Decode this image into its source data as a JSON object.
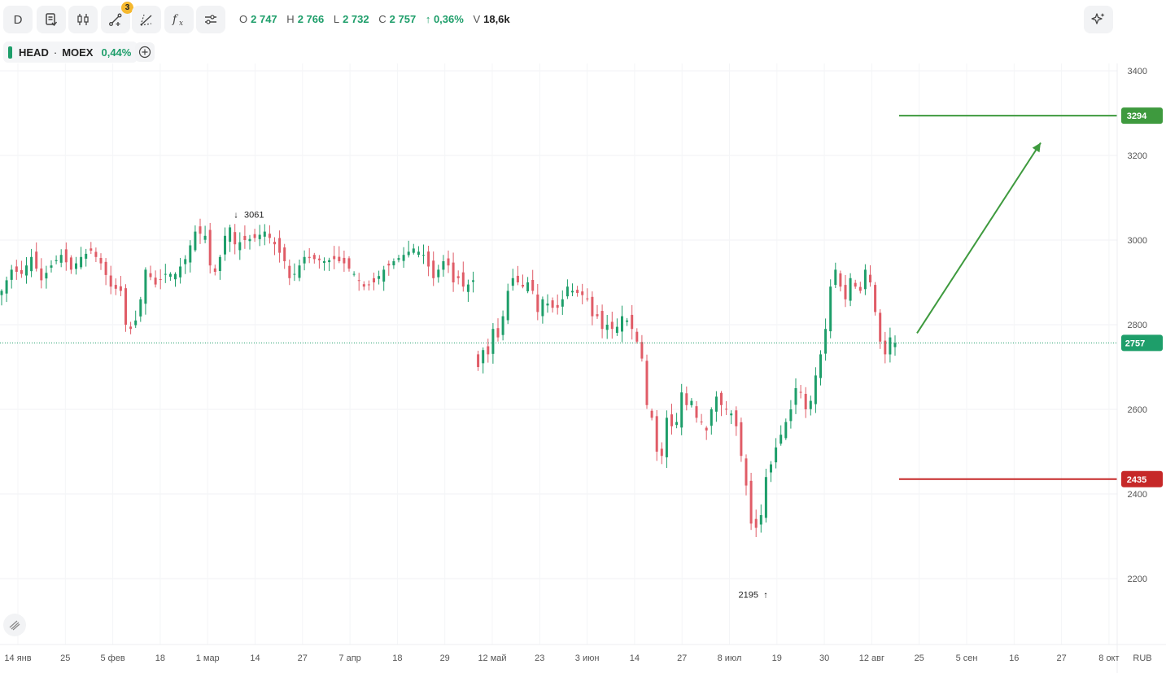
{
  "toolbar": {
    "interval_label": "D",
    "drawing_tools_count": "3",
    "icons": [
      "interval-button",
      "chart-template-icon",
      "candle-type-icon",
      "drawing-tools-icon",
      "pattern-icon",
      "indicators-icon",
      "settings-icon"
    ]
  },
  "ohlc": {
    "o_label": "O",
    "o_value": "2 747",
    "h_label": "H",
    "h_value": "2 766",
    "l_label": "L",
    "l_value": "2 732",
    "c_label": "C",
    "c_value": "2 757",
    "change": "↑ 0,36%",
    "v_label": "V",
    "v_value": "18,6k"
  },
  "legend": {
    "symbol": "HEAD",
    "separator": "·",
    "exchange": "MOEX",
    "change": "0,44%"
  },
  "colors": {
    "up": "#1e9e6a",
    "down": "#e05c67",
    "target_line": "#3e9a3e",
    "stop_line": "#c62828",
    "last_price": "#1e9e6a"
  },
  "chart_data": {
    "type": "candlestick",
    "currency": "RUB",
    "ylim": [
      2000,
      3520
    ],
    "y_ticks": [
      2200,
      2400,
      2600,
      2800,
      3000,
      3200,
      3400
    ],
    "x_ticks": [
      "14 янв",
      "25",
      "5 фев",
      "18",
      "1 мар",
      "14",
      "27",
      "7 апр",
      "18",
      "29",
      "12 май",
      "23",
      "3 июн",
      "14",
      "27",
      "8 июл",
      "19",
      "30",
      "12 авг",
      "25",
      "5 сен",
      "16",
      "27",
      "8 окт"
    ],
    "close_path": [
      {
        "t": 0,
        "c": 2880
      },
      {
        "t": 2,
        "c": 2930
      },
      {
        "t": 4,
        "c": 2920
      },
      {
        "t": 6,
        "c": 2960
      },
      {
        "t": 8,
        "c": 2905
      },
      {
        "t": 10,
        "c": 2940
      },
      {
        "t": 12,
        "c": 2965
      },
      {
        "t": 14,
        "c": 2930
      },
      {
        "t": 16,
        "c": 2960
      },
      {
        "t": 18,
        "c": 2975
      },
      {
        "t": 20,
        "c": 2945
      },
      {
        "t": 22,
        "c": 2890
      },
      {
        "t": 24,
        "c": 2880
      },
      {
        "t": 25,
        "c": 2800
      },
      {
        "t": 26,
        "c": 2790
      },
      {
        "t": 27,
        "c": 2810
      },
      {
        "t": 28,
        "c": 2860
      },
      {
        "t": 29,
        "c": 2930
      },
      {
        "t": 31,
        "c": 2895
      },
      {
        "t": 33,
        "c": 2920
      },
      {
        "t": 35,
        "c": 2920
      },
      {
        "t": 37,
        "c": 2955
      },
      {
        "t": 39,
        "c": 3020
      },
      {
        "t": 41,
        "c": 3010
      },
      {
        "t": 42,
        "c": 2940
      },
      {
        "t": 43,
        "c": 2925
      },
      {
        "t": 44,
        "c": 2960
      },
      {
        "t": 45,
        "c": 3010
      },
      {
        "t": 46,
        "c": 3030
      },
      {
        "t": 47,
        "c": 2990
      },
      {
        "t": 49,
        "c": 3000
      },
      {
        "t": 51,
        "c": 3005
      },
      {
        "t": 53,
        "c": 3020
      },
      {
        "t": 55,
        "c": 2990
      },
      {
        "t": 57,
        "c": 2950
      },
      {
        "t": 58,
        "c": 2910
      },
      {
        "t": 59,
        "c": 2920
      },
      {
        "t": 61,
        "c": 2960
      },
      {
        "t": 63,
        "c": 2955
      },
      {
        "t": 65,
        "c": 2950
      },
      {
        "t": 67,
        "c": 2955
      },
      {
        "t": 69,
        "c": 2945
      },
      {
        "t": 71,
        "c": 2920
      },
      {
        "t": 73,
        "c": 2890
      },
      {
        "t": 75,
        "c": 2900
      },
      {
        "t": 77,
        "c": 2930
      },
      {
        "t": 79,
        "c": 2950
      },
      {
        "t": 81,
        "c": 2965
      },
      {
        "t": 83,
        "c": 2980
      },
      {
        "t": 85,
        "c": 2965
      },
      {
        "t": 87,
        "c": 2910
      },
      {
        "t": 89,
        "c": 2950
      },
      {
        "t": 90,
        "c": 2940
      },
      {
        "t": 91,
        "c": 2900
      },
      {
        "t": 92,
        "c": 2910
      },
      {
        "t": 93,
        "c": 2890
      },
      {
        "t": 94,
        "c": 2895
      },
      {
        "t": 95,
        "c": 2905
      },
      {
        "t": 96,
        "c": 2700
      },
      {
        "t": 97,
        "c": 2740
      },
      {
        "t": 98,
        "c": 2730
      },
      {
        "t": 99,
        "c": 2790
      },
      {
        "t": 100,
        "c": 2770
      },
      {
        "t": 101,
        "c": 2820
      },
      {
        "t": 102,
        "c": 2880
      },
      {
        "t": 103,
        "c": 2910
      },
      {
        "t": 104,
        "c": 2900
      },
      {
        "t": 105,
        "c": 2890
      },
      {
        "t": 106,
        "c": 2900
      },
      {
        "t": 107,
        "c": 2880
      },
      {
        "t": 108,
        "c": 2830
      },
      {
        "t": 109,
        "c": 2860
      },
      {
        "t": 110,
        "c": 2850
      },
      {
        "t": 111,
        "c": 2840
      },
      {
        "t": 112,
        "c": 2840
      },
      {
        "t": 113,
        "c": 2860
      },
      {
        "t": 114,
        "c": 2890
      },
      {
        "t": 115,
        "c": 2880
      },
      {
        "t": 116,
        "c": 2875
      },
      {
        "t": 117,
        "c": 2870
      },
      {
        "t": 118,
        "c": 2860
      },
      {
        "t": 119,
        "c": 2820
      },
      {
        "t": 120,
        "c": 2820
      },
      {
        "t": 121,
        "c": 2790
      },
      {
        "t": 122,
        "c": 2800
      },
      {
        "t": 123,
        "c": 2790
      },
      {
        "t": 124,
        "c": 2795
      },
      {
        "t": 125,
        "c": 2820
      },
      {
        "t": 126,
        "c": 2810
      },
      {
        "t": 127,
        "c": 2790
      },
      {
        "t": 128,
        "c": 2760
      },
      {
        "t": 129,
        "c": 2720
      },
      {
        "t": 130,
        "c": 2610
      },
      {
        "t": 131,
        "c": 2580
      },
      {
        "t": 132,
        "c": 2500
      },
      {
        "t": 133,
        "c": 2490
      },
      {
        "t": 134,
        "c": 2580
      },
      {
        "t": 135,
        "c": 2560
      },
      {
        "t": 136,
        "c": 2570
      },
      {
        "t": 137,
        "c": 2640
      },
      {
        "t": 138,
        "c": 2610
      },
      {
        "t": 139,
        "c": 2620
      },
      {
        "t": 140,
        "c": 2580
      },
      {
        "t": 141,
        "c": 2570
      },
      {
        "t": 142,
        "c": 2550
      },
      {
        "t": 143,
        "c": 2600
      },
      {
        "t": 144,
        "c": 2630
      },
      {
        "t": 145,
        "c": 2610
      },
      {
        "t": 146,
        "c": 2600
      },
      {
        "t": 147,
        "c": 2590
      },
      {
        "t": 148,
        "c": 2560
      },
      {
        "t": 149,
        "c": 2490
      },
      {
        "t": 150,
        "c": 2420
      },
      {
        "t": 151,
        "c": 2330
      },
      {
        "t": 152,
        "c": 2320
      },
      {
        "t": 153,
        "c": 2350
      },
      {
        "t": 154,
        "c": 2440
      },
      {
        "t": 155,
        "c": 2470
      },
      {
        "t": 156,
        "c": 2510
      },
      {
        "t": 157,
        "c": 2540
      },
      {
        "t": 158,
        "c": 2570
      },
      {
        "t": 159,
        "c": 2600
      },
      {
        "t": 160,
        "c": 2650
      },
      {
        "t": 161,
        "c": 2640
      },
      {
        "t": 162,
        "c": 2600
      },
      {
        "t": 163,
        "c": 2620
      },
      {
        "t": 164,
        "c": 2680
      },
      {
        "t": 165,
        "c": 2730
      },
      {
        "t": 166,
        "c": 2790
      },
      {
        "t": 167,
        "c": 2890
      },
      {
        "t": 168,
        "c": 2930
      },
      {
        "t": 169,
        "c": 2890
      },
      {
        "t": 170,
        "c": 2860
      },
      {
        "t": 171,
        "c": 2910
      },
      {
        "t": 172,
        "c": 2890
      },
      {
        "t": 173,
        "c": 2880
      },
      {
        "t": 174,
        "c": 2930
      },
      {
        "t": 175,
        "c": 2900
      },
      {
        "t": 176,
        "c": 2830
      },
      {
        "t": 177,
        "c": 2760
      },
      {
        "t": 178,
        "c": 2730
      },
      {
        "t": 179,
        "c": 2770
      },
      {
        "t": 180,
        "c": 2757
      }
    ],
    "annotations": [
      {
        "label": "3061",
        "price": 3061,
        "arrow": "↓"
      },
      {
        "label": "2195",
        "price": 2195,
        "arrow": "↑"
      }
    ],
    "last_price": 2757,
    "target_price": 3294,
    "stop_price": 2435,
    "trend_arrow": {
      "from_price": 2780,
      "to_price": 3230
    }
  }
}
